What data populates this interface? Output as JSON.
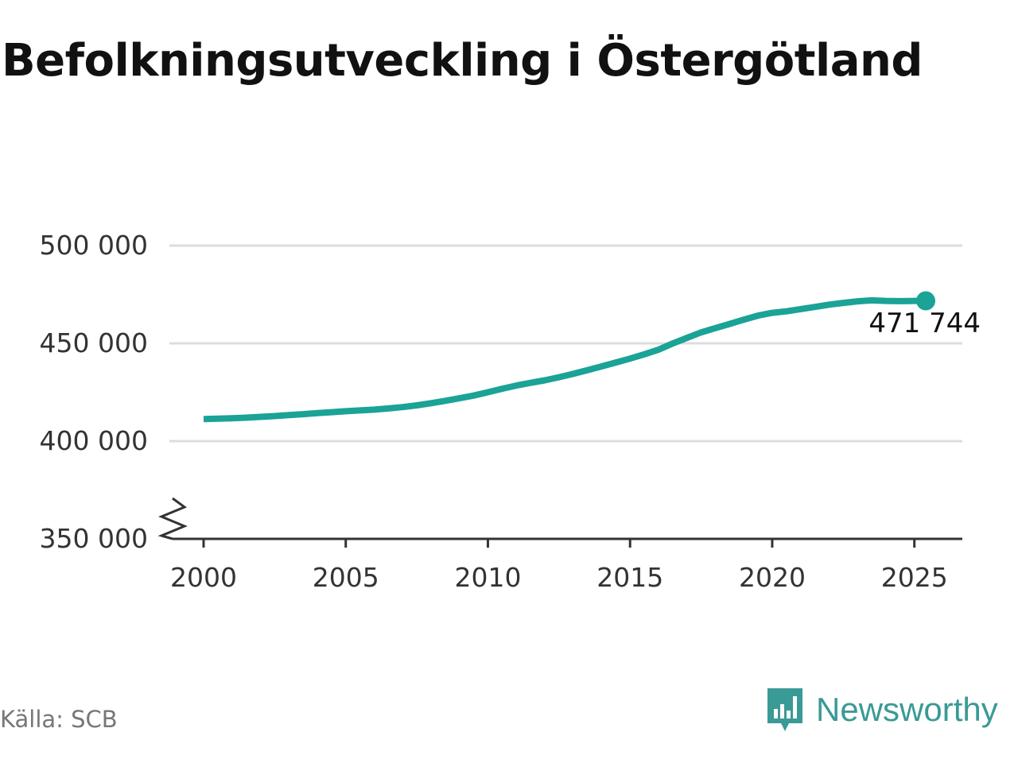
{
  "title": "Befolkningsutveckling i Östergötland",
  "source": "Källa: SCB",
  "brand": {
    "name": "Newsworthy",
    "icon": "bar-chart-speech-bubble-icon",
    "color": "#3a9a95"
  },
  "colors": {
    "line": "#1aa396",
    "grid": "#dddddd",
    "axis": "#333333",
    "text": "#333333"
  },
  "chart_data": {
    "type": "line",
    "title": "Befolkningsutveckling i Östergötland",
    "xlabel": "",
    "ylabel": "",
    "xlim": [
      1999.6,
      2026.3
    ],
    "ylim": [
      350000,
      500000
    ],
    "y_axis_break": true,
    "grid": "horizontal",
    "x_ticks": [
      2000,
      2005,
      2010,
      2015,
      2020,
      2025
    ],
    "x_tick_labels": [
      "2000",
      "2005",
      "2010",
      "2015",
      "2020",
      "2025"
    ],
    "y_ticks": [
      350000,
      400000,
      450000,
      500000
    ],
    "y_tick_labels": [
      "350 000",
      "400 000",
      "450 000",
      "500 000"
    ],
    "end_label": "471 744",
    "series": [
      {
        "x": [
          2000.0,
          2000.5,
          2001.0,
          2001.5,
          2002.0,
          2002.5,
          2003.0,
          2003.5,
          2004.0,
          2004.5,
          2005.0,
          2005.5,
          2006.0,
          2006.5,
          2007.0,
          2007.5,
          2008.0,
          2008.5,
          2009.0,
          2009.5,
          2010.0,
          2010.5,
          2011.0,
          2011.5,
          2012.0,
          2012.5,
          2013.0,
          2013.5,
          2014.0,
          2014.5,
          2015.0,
          2015.5,
          2016.0,
          2016.5,
          2017.0,
          2017.5,
          2018.0,
          2018.5,
          2019.0,
          2019.5,
          2020.0,
          2020.5,
          2021.0,
          2021.5,
          2022.0,
          2022.5,
          2023.0,
          2023.5,
          2024.0,
          2024.5,
          2025.0,
          2025.4
        ],
        "values": [
          411300,
          411500,
          411700,
          412000,
          412400,
          412800,
          413300,
          413800,
          414300,
          414800,
          415300,
          415700,
          416100,
          416700,
          417400,
          418300,
          419400,
          420600,
          421900,
          423300,
          425000,
          426800,
          428400,
          429800,
          431100,
          432700,
          434400,
          436300,
          438200,
          440200,
          442200,
          444400,
          446800,
          449900,
          452800,
          455600,
          457800,
          459900,
          462100,
          464200,
          465600,
          466400,
          467500,
          468600,
          469800,
          470700,
          471500,
          472000,
          471700,
          471600,
          471700,
          471744
        ]
      }
    ]
  }
}
